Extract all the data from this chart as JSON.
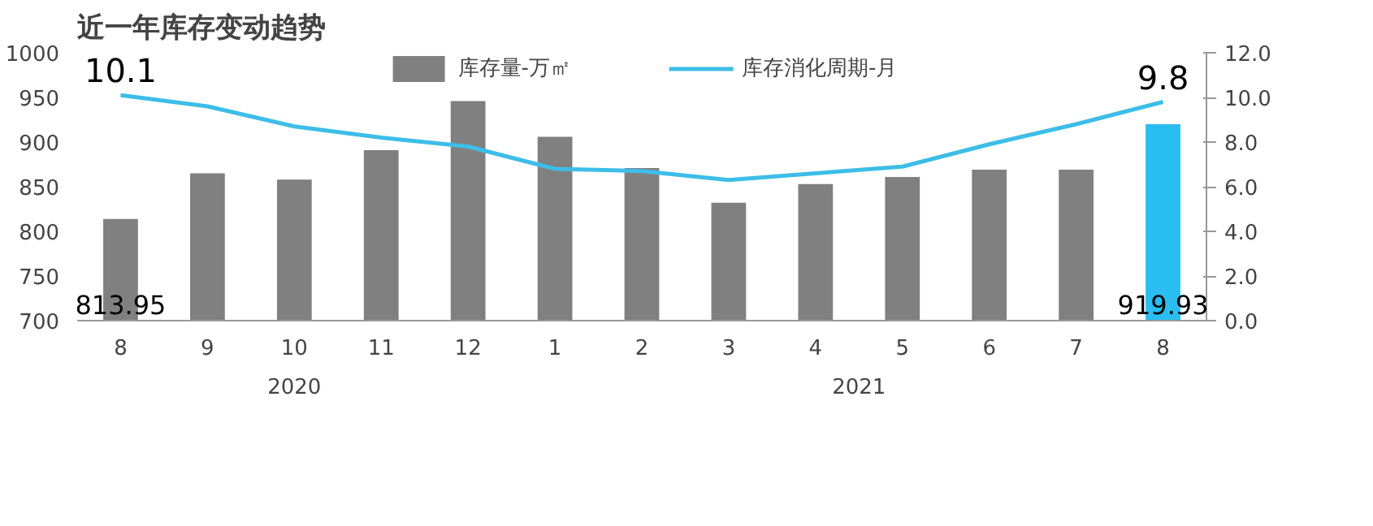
{
  "chart_data": {
    "type": "bar",
    "title": "近一年库存变动趋势",
    "categories": [
      "8",
      "9",
      "10",
      "11",
      "12",
      "1",
      "2",
      "3",
      "4",
      "5",
      "6",
      "7",
      "8"
    ],
    "series": [
      {
        "name": "库存量-万㎡",
        "colors": [
          "#808080",
          "#808080",
          "#808080",
          "#808080",
          "#808080",
          "#808080",
          "#808080",
          "#808080",
          "#808080",
          "#808080",
          "#808080",
          "#808080",
          "#29bdf0"
        ],
        "values": [
          813.95,
          865,
          858,
          891,
          946,
          906,
          871,
          832,
          853,
          861,
          869,
          869,
          919.93
        ],
        "value_labels": [
          "813.95",
          null,
          null,
          null,
          null,
          null,
          null,
          null,
          null,
          null,
          null,
          null,
          "919.93"
        ]
      },
      {
        "name": "库存消化周期-月",
        "type": "line",
        "axis": "y2",
        "color": "#3dbde8",
        "values": [
          10.1,
          9.6,
          8.7,
          8.2,
          7.8,
          6.8,
          6.7,
          6.3,
          6.6,
          6.9,
          7.9,
          8.8,
          9.8
        ],
        "value_labels": [
          "10.1",
          null,
          null,
          null,
          null,
          null,
          null,
          null,
          null,
          null,
          null,
          null,
          "9.8"
        ]
      }
    ],
    "ylim": [
      700,
      1000
    ],
    "yticks": [
      700,
      750,
      800,
      850,
      900,
      950,
      1000
    ],
    "y2lim": [
      0,
      12
    ],
    "y2ticks": [
      {
        "value": 0,
        "label": "0.0"
      },
      {
        "value": 2,
        "label": "2.0"
      },
      {
        "value": 4,
        "label": "4.0"
      },
      {
        "value": 6,
        "label": "6.0"
      },
      {
        "value": 8,
        "label": "8.0"
      },
      {
        "value": 10,
        "label": "10.0"
      },
      {
        "value": 12,
        "label": "12.0"
      }
    ],
    "annotations": [
      "2020",
      "2021"
    ],
    "legend": "top",
    "grid": false
  }
}
